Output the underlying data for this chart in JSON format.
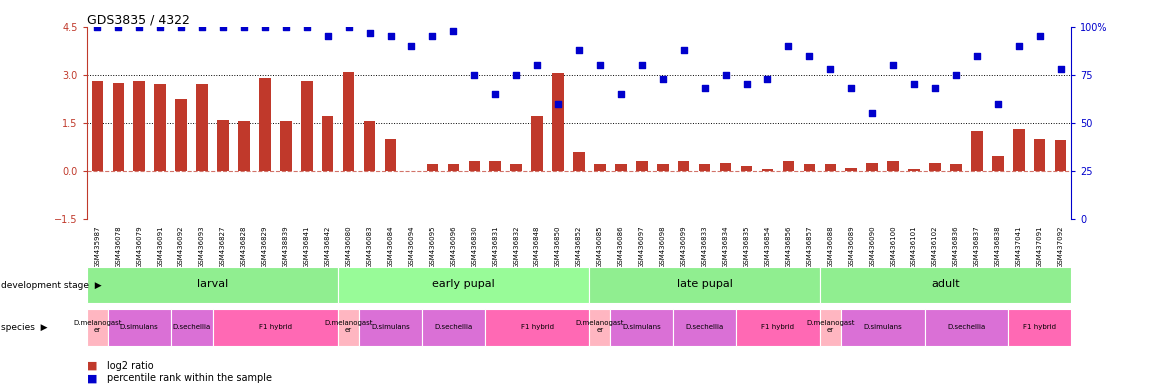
{
  "title": "GDS3835 / 4322",
  "sample_ids": [
    "GSM435987",
    "GSM436078",
    "GSM436079",
    "GSM436091",
    "GSM436092",
    "GSM436093",
    "GSM436827",
    "GSM436828",
    "GSM436829",
    "GSM438839",
    "GSM436841",
    "GSM436842",
    "GSM436080",
    "GSM436083",
    "GSM436084",
    "GSM436094",
    "GSM436095",
    "GSM436096",
    "GSM436830",
    "GSM436831",
    "GSM436832",
    "GSM436848",
    "GSM436850",
    "GSM436852",
    "GSM436085",
    "GSM436086",
    "GSM436097",
    "GSM436098",
    "GSM436099",
    "GSM436833",
    "GSM436834",
    "GSM436835",
    "GSM436854",
    "GSM436856",
    "GSM436857",
    "GSM436088",
    "GSM436089",
    "GSM436090",
    "GSM436100",
    "GSM436101",
    "GSM436102",
    "GSM436836",
    "GSM436837",
    "GSM436838",
    "GSM437041",
    "GSM437091",
    "GSM437092"
  ],
  "log2_ratio": [
    2.8,
    2.75,
    2.8,
    2.7,
    2.25,
    2.7,
    1.6,
    1.55,
    2.9,
    1.55,
    2.8,
    1.7,
    3.1,
    1.55,
    1.0,
    0.0,
    0.2,
    0.2,
    0.3,
    0.3,
    0.2,
    1.7,
    3.05,
    0.6,
    0.2,
    0.2,
    0.3,
    0.2,
    0.3,
    0.2,
    0.25,
    0.15,
    0.05,
    0.3,
    0.2,
    0.2,
    0.1,
    0.25,
    0.3,
    0.05,
    0.25,
    0.2,
    1.25,
    0.45,
    1.3,
    1.0,
    0.95
  ],
  "percentile": [
    100,
    100,
    100,
    100,
    100,
    100,
    100,
    100,
    100,
    100,
    100,
    95,
    100,
    97,
    95,
    90,
    95,
    98,
    75,
    65,
    75,
    80,
    60,
    88,
    80,
    65,
    80,
    73,
    88,
    68,
    75,
    70,
    73,
    90,
    85,
    78,
    68,
    55,
    80,
    70,
    68,
    75,
    85,
    60,
    90,
    95,
    78
  ],
  "dev_stages": [
    {
      "label": "larval",
      "start": 0,
      "end": 12,
      "color": "#90EE90"
    },
    {
      "label": "early pupal",
      "start": 12,
      "end": 24,
      "color": "#98FB98"
    },
    {
      "label": "late pupal",
      "start": 24,
      "end": 35,
      "color": "#90EE90"
    },
    {
      "label": "adult",
      "start": 35,
      "end": 47,
      "color": "#90EE90"
    }
  ],
  "species_groups": [
    {
      "label": "D.melanogast\ner",
      "start": 0,
      "end": 1,
      "color": "#FFB6C1"
    },
    {
      "label": "D.simulans",
      "start": 1,
      "end": 4,
      "color": "#DA70D6"
    },
    {
      "label": "D.sechellia",
      "start": 4,
      "end": 6,
      "color": "#DA70D6"
    },
    {
      "label": "F1 hybrid",
      "start": 6,
      "end": 12,
      "color": "#FF69B4"
    },
    {
      "label": "D.melanogast\ner",
      "start": 12,
      "end": 13,
      "color": "#FFB6C1"
    },
    {
      "label": "D.simulans",
      "start": 13,
      "end": 16,
      "color": "#DA70D6"
    },
    {
      "label": "D.sechellia",
      "start": 16,
      "end": 19,
      "color": "#DA70D6"
    },
    {
      "label": "F1 hybrid",
      "start": 19,
      "end": 24,
      "color": "#FF69B4"
    },
    {
      "label": "D.melanogast\ner",
      "start": 24,
      "end": 25,
      "color": "#FFB6C1"
    },
    {
      "label": "D.simulans",
      "start": 25,
      "end": 28,
      "color": "#DA70D6"
    },
    {
      "label": "D.sechellia",
      "start": 28,
      "end": 31,
      "color": "#DA70D6"
    },
    {
      "label": "F1 hybrid",
      "start": 31,
      "end": 35,
      "color": "#FF69B4"
    },
    {
      "label": "D.melanogast\ner",
      "start": 35,
      "end": 36,
      "color": "#FFB6C1"
    },
    {
      "label": "D.simulans",
      "start": 36,
      "end": 40,
      "color": "#DA70D6"
    },
    {
      "label": "D.sechellia",
      "start": 40,
      "end": 44,
      "color": "#DA70D6"
    },
    {
      "label": "F1 hybrid",
      "start": 44,
      "end": 47,
      "color": "#FF69B4"
    }
  ],
  "bar_color": "#C0392B",
  "scatter_color": "#0000CC",
  "left_ylim": [
    -1.5,
    4.5
  ],
  "right_ylim": [
    0,
    100
  ],
  "left_yticks": [
    -1.5,
    0.0,
    1.5,
    3.0,
    4.5
  ],
  "right_yticks": [
    0,
    25,
    50,
    75,
    100
  ],
  "background_color": "#ffffff",
  "fig_width": 11.58,
  "fig_height": 3.84,
  "dpi": 100
}
